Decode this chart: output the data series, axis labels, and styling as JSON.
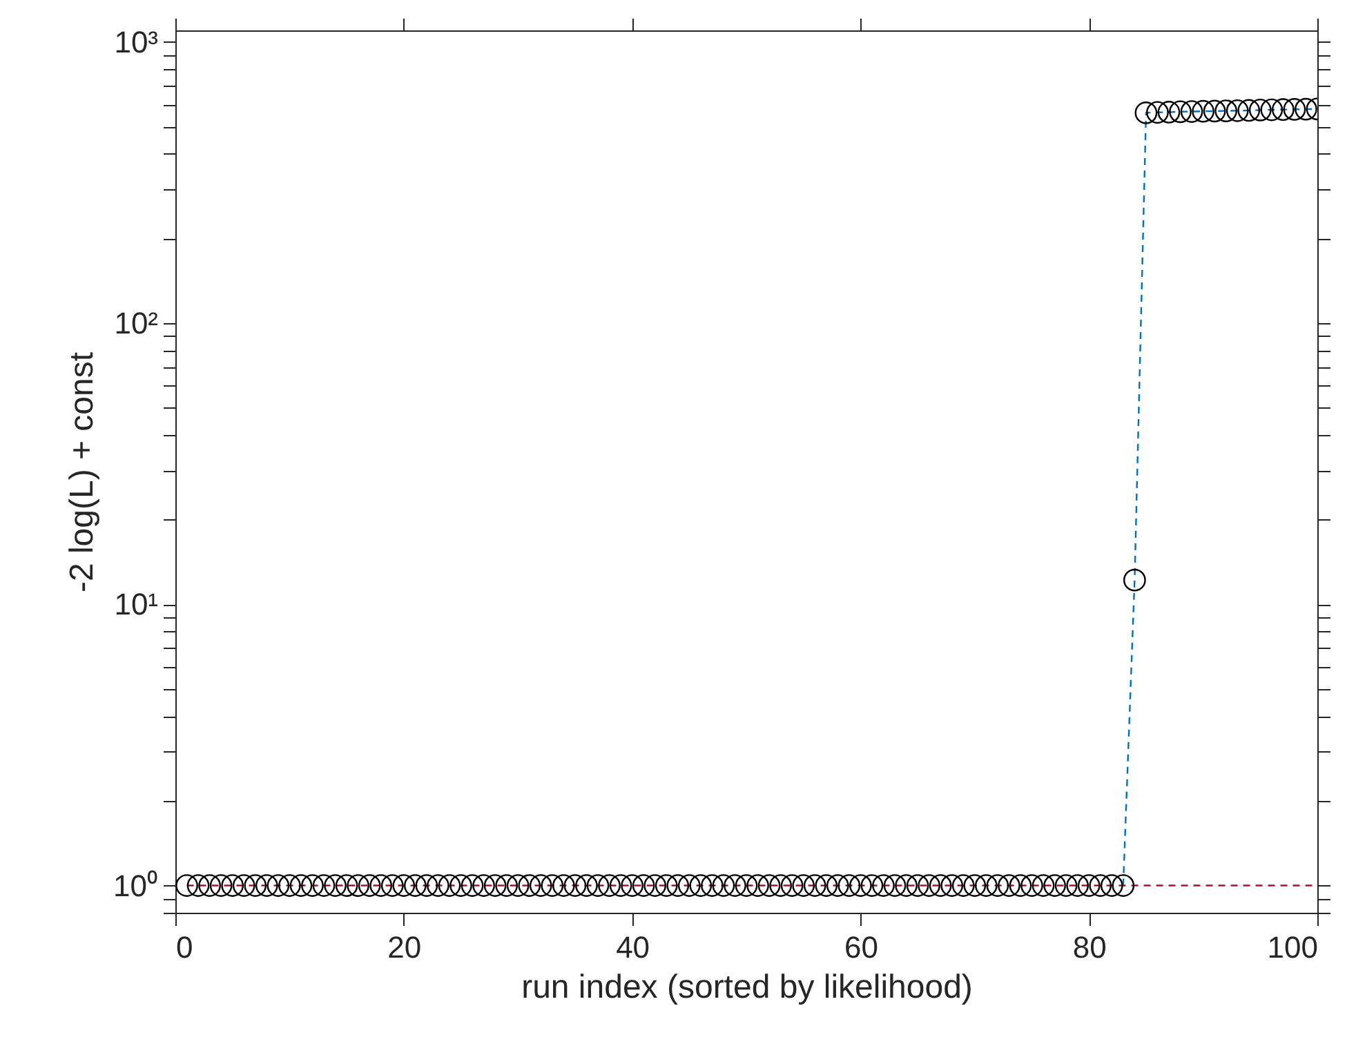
{
  "chart_data": {
    "type": "scatter",
    "xlabel": "run index (sorted by likelihood)",
    "ylabel": "-2 log(L) + const",
    "xlim": [
      0,
      100
    ],
    "xticks": [
      0,
      20,
      40,
      60,
      80,
      100
    ],
    "ylim": [
      0.8,
      1100
    ],
    "log": "y",
    "yticks": [
      {
        "value": 0.8,
        "label": null
      },
      {
        "value": 0.9,
        "label": null
      },
      {
        "value": 1,
        "label": "10⁰"
      },
      {
        "value": 2,
        "label": null
      },
      {
        "value": 3,
        "label": null
      },
      {
        "value": 4,
        "label": null
      },
      {
        "value": 5,
        "label": null
      },
      {
        "value": 6,
        "label": null
      },
      {
        "value": 7,
        "label": null
      },
      {
        "value": 8,
        "label": null
      },
      {
        "value": 9,
        "label": null
      },
      {
        "value": 10,
        "label": "10¹"
      },
      {
        "value": 20,
        "label": null
      },
      {
        "value": 30,
        "label": null
      },
      {
        "value": 40,
        "label": null
      },
      {
        "value": 50,
        "label": null
      },
      {
        "value": 60,
        "label": null
      },
      {
        "value": 70,
        "label": null
      },
      {
        "value": 80,
        "label": null
      },
      {
        "value": 90,
        "label": null
      },
      {
        "value": 100,
        "label": "10²"
      },
      {
        "value": 200,
        "label": null
      },
      {
        "value": 300,
        "label": null
      },
      {
        "value": 400,
        "label": null
      },
      {
        "value": 500,
        "label": null
      },
      {
        "value": 600,
        "label": null
      },
      {
        "value": 700,
        "label": null
      },
      {
        "value": 800,
        "label": null
      },
      {
        "value": 900,
        "label": null
      },
      {
        "value": 1000,
        "label": "10³"
      }
    ],
    "grid": false,
    "series": [
      {
        "type": "line",
        "line_style": "dashed",
        "marker": "none",
        "color": "#a2142f",
        "x": [
          1,
          100
        ],
        "values": [
          1,
          1
        ]
      },
      {
        "type": "line",
        "line_style": "dashed",
        "marker": "none",
        "color": "#0072bd",
        "x": [
          83,
          84,
          85,
          86,
          87,
          88,
          89,
          90,
          91,
          92,
          93,
          94,
          95,
          96,
          97,
          98,
          99,
          100
        ],
        "values": [
          1,
          12.2,
          560,
          562,
          563,
          565,
          566,
          567,
          568,
          569,
          570,
          571,
          573,
          574,
          575,
          576,
          577,
          578
        ]
      },
      {
        "marker": "circle",
        "color": "#000000",
        "x": [
          1,
          2,
          3,
          4,
          5,
          6,
          7,
          8,
          9,
          10,
          11,
          12,
          13,
          14,
          15,
          16,
          17,
          18,
          19,
          20,
          21,
          22,
          23,
          24,
          25,
          26,
          27,
          28,
          29,
          30,
          31,
          32,
          33,
          34,
          35,
          36,
          37,
          38,
          39,
          40,
          41,
          42,
          43,
          44,
          45,
          46,
          47,
          48,
          49,
          50,
          51,
          52,
          53,
          54,
          55,
          56,
          57,
          58,
          59,
          60,
          61,
          62,
          63,
          64,
          65,
          66,
          67,
          68,
          69,
          70,
          71,
          72,
          73,
          74,
          75,
          76,
          77,
          78,
          79,
          80,
          81,
          82,
          83,
          84,
          85,
          86,
          87,
          88,
          89,
          90,
          91,
          92,
          93,
          94,
          95,
          96,
          97,
          98,
          99,
          100
        ],
        "values": [
          1,
          1,
          1,
          1,
          1,
          1,
          1,
          1,
          1,
          1,
          1,
          1,
          1,
          1,
          1,
          1,
          1,
          1,
          1,
          1,
          1,
          1,
          1,
          1,
          1,
          1,
          1,
          1,
          1,
          1,
          1,
          1,
          1,
          1,
          1,
          1,
          1,
          1,
          1,
          1,
          1,
          1,
          1,
          1,
          1,
          1,
          1,
          1,
          1,
          1,
          1,
          1,
          1,
          1,
          1,
          1,
          1,
          1,
          1,
          1,
          1,
          1,
          1,
          1,
          1,
          1,
          1,
          1,
          1,
          1,
          1,
          1,
          1,
          1,
          1,
          1,
          1,
          1,
          1,
          1,
          1,
          1,
          1,
          12.2,
          560,
          562,
          563,
          565,
          566,
          567,
          568,
          569,
          570,
          571,
          573,
          574,
          575,
          576,
          577,
          578
        ]
      }
    ]
  }
}
